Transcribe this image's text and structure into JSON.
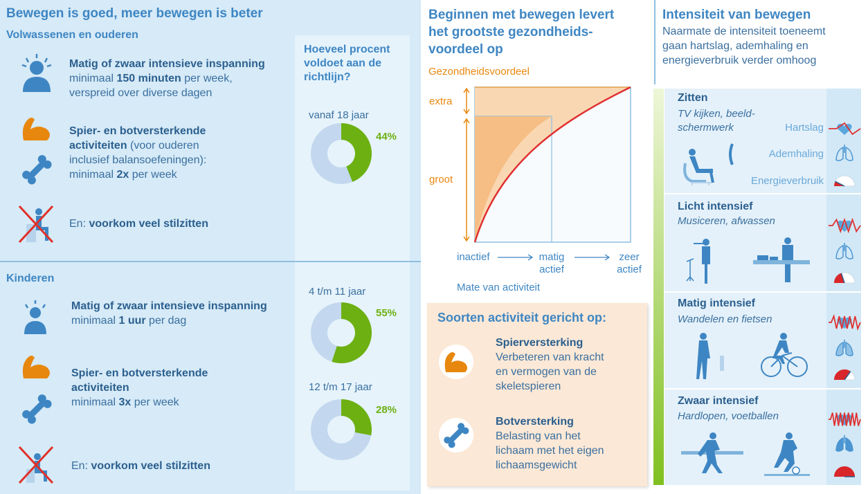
{
  "left": {
    "title": "Bewegen is goed, meer bewegen is beter",
    "adults": {
      "heading": "Volwassenen en ouderen",
      "item1": {
        "bold": "Matig of zwaar intensieve inspanning",
        "text1": "minimaal ",
        "bold2": "150 minuten",
        "text2": " per week,",
        "text3": "verspreid over diverse dagen"
      },
      "item2": {
        "bold_a": "Spier- en botversterkende",
        "bold_b": "activiteiten",
        "text1": " (voor ouderen",
        "text2": "inclusief balansoefeningen):",
        "text3": "minimaal ",
        "bold2": "2x",
        "text4": " per week"
      },
      "item3": {
        "text": "En: ",
        "bold": "voorkom veel stilzitten"
      }
    },
    "children": {
      "heading": "Kinderen",
      "item1": {
        "bold": "Matig of zwaar intensieve inspanning",
        "text1": "minimaal ",
        "bold2": "1 uur",
        "text2": " per dag"
      },
      "item2": {
        "bold_a": "Spier- en botversterkende",
        "bold_b": "activiteiten",
        "text1": "minimaal ",
        "bold2": "3x",
        "text2": " per week"
      },
      "item3": {
        "text": "En: ",
        "bold": "voorkom veel stilzitten"
      }
    },
    "percent": {
      "heading_l1": "Hoeveel procent",
      "heading_l2": "voldoet aan de",
      "heading_l3": "richtlijn?",
      "groups": [
        {
          "age": "vanaf 18 jaar",
          "label": "44%",
          "value": 44
        },
        {
          "age": "4 t/m 11 jaar",
          "label": "55%",
          "value": 55
        },
        {
          "age": "12 t/m 17 jaar",
          "label": "28%",
          "value": 28
        }
      ]
    }
  },
  "middle": {
    "title_l1": "Beginnen met bewegen levert",
    "title_l2": "het grootste gezondheids-",
    "title_l3": "voordeel op",
    "ylabel": "Gezondheidsvoordeel",
    "extra": "extra",
    "groot": "groot",
    "x_inactief": "inactief",
    "x_matig_1": "matig",
    "x_matig_2": "actief",
    "x_zeer_1": "zeer",
    "x_zeer_2": "actief",
    "xlabel": "Mate van activiteit",
    "activities": {
      "heading": "Soorten activiteit gericht op:",
      "spier": {
        "title": "Spierversterking",
        "l1": "Verbeteren van kracht",
        "l2": "en vermogen van de",
        "l3": "skeletspieren"
      },
      "bot": {
        "title": "Botversterking",
        "l1": "Belasting van het",
        "l2": "lichaam met het eigen",
        "l3": "lichaamsgewicht"
      }
    }
  },
  "right": {
    "title": "Intensiteit van bewegen",
    "desc_l1": "Naarmate de intensiteit toeneemt",
    "desc_l2": "gaan hartslag, ademhaling en",
    "desc_l3": "energieverbruik verder omhoog",
    "levels": [
      {
        "title": "Zitten",
        "sub_l1": "TV kijken, beeld-",
        "sub_l2": "schermwerk",
        "gauge": 0.15
      },
      {
        "title": "Licht intensief",
        "sub_l1": "Musiceren, afwassen",
        "sub_l2": "",
        "gauge": 0.4
      },
      {
        "title": "Matig intensief",
        "sub_l1": "Wandelen en fietsen",
        "sub_l2": "",
        "gauge": 0.7
      },
      {
        "title": "Zwaar intensief",
        "sub_l1": "Hardlopen, voetballen",
        "sub_l2": "",
        "gauge": 1.0
      }
    ],
    "indicators": {
      "hartslag": "Hartslag",
      "ademhaling": "Ademhaling",
      "energie": "Energieverbruik"
    }
  },
  "colors": {
    "accent": "#3e86c3",
    "donut_fill": "#6db012",
    "donut_bg": "#c3d8ee",
    "orange": "#e8870e",
    "curve": "#e03030"
  }
}
